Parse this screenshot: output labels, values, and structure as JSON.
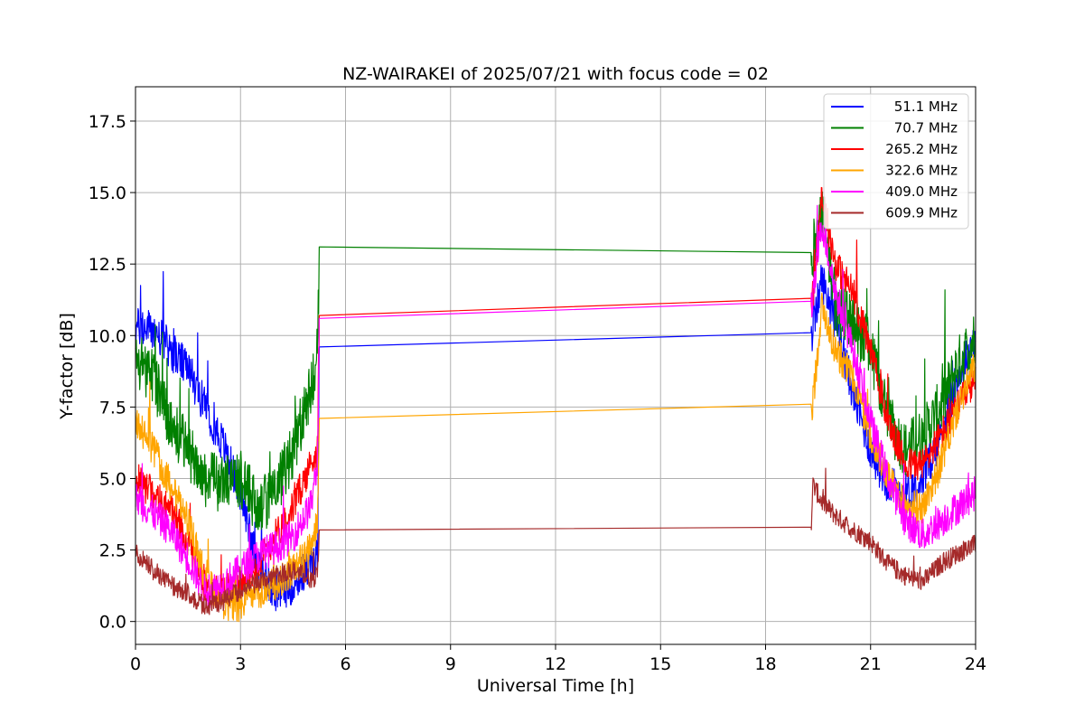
{
  "chart_data": {
    "type": "line",
    "title": "NZ-WAIRAKEI of 2025/07/21 with focus code = 02",
    "xlabel": "Universal Time [h]",
    "ylabel": "Y-factor [dB]",
    "xlim": [
      0,
      24
    ],
    "ylim": [
      -0.8,
      18.7
    ],
    "xticks": [
      0,
      3,
      6,
      9,
      12,
      15,
      18,
      21,
      24
    ],
    "yticks": [
      0.0,
      2.5,
      5.0,
      7.5,
      10.0,
      12.5,
      15.0,
      17.5
    ],
    "xtick_labels": [
      "0",
      "3",
      "6",
      "9",
      "12",
      "15",
      "18",
      "21",
      "24"
    ],
    "ytick_labels": [
      "0.0",
      "2.5",
      "5.0",
      "7.5",
      "10.0",
      "12.5",
      "15.0",
      "17.5"
    ],
    "grid": true,
    "legend_position": "top-right",
    "series": [
      {
        "name": "51.1 MHz",
        "color": "#0000ff",
        "noise": 0.7,
        "x": [
          0,
          0.5,
          1,
          1.5,
          2,
          2.5,
          3,
          3.5,
          4,
          4.5,
          5,
          5.2,
          5.25,
          19.3,
          19.35,
          19.6,
          20,
          20.5,
          21,
          21.5,
          22,
          22.5,
          23,
          23.5,
          24
        ],
        "y": [
          10.3,
          10.2,
          9.5,
          8.8,
          7.5,
          6.2,
          4.5,
          2.0,
          1.0,
          1.3,
          2.0,
          2.2,
          9.6,
          10.1,
          10.1,
          12.0,
          10.5,
          8.0,
          6.0,
          4.8,
          4.5,
          5.0,
          6.5,
          8.5,
          10.0
        ]
      },
      {
        "name": "70.7 MHz",
        "color": "#008000",
        "noise": 1.0,
        "x": [
          0,
          0.5,
          1,
          1.5,
          2,
          2.5,
          3,
          3.5,
          4,
          4.5,
          5,
          5.2,
          5.25,
          19.3,
          19.35,
          19.6,
          20,
          20.5,
          21,
          21.5,
          22,
          22.5,
          23,
          23.5,
          24
        ],
        "y": [
          9.0,
          8.5,
          7.0,
          6.0,
          5.0,
          4.8,
          5.0,
          4.0,
          4.5,
          6.0,
          8.0,
          9.0,
          13.1,
          12.9,
          12.9,
          14.5,
          11.0,
          10.5,
          9.5,
          7.0,
          6.0,
          6.5,
          7.5,
          9.0,
          10.0
        ]
      },
      {
        "name": "265.2 MHz",
        "color": "#ff0000",
        "noise": 0.6,
        "x": [
          0,
          0.5,
          1,
          1.5,
          2,
          2.5,
          3,
          3.5,
          4,
          4.5,
          5,
          5.2,
          5.25,
          19.3,
          19.35,
          19.6,
          20,
          20.5,
          21,
          21.5,
          22,
          22.5,
          23,
          23.5,
          24
        ],
        "y": [
          5.0,
          4.5,
          4.0,
          2.8,
          1.3,
          1.0,
          1.3,
          2.0,
          3.0,
          4.0,
          5.5,
          6.0,
          10.7,
          11.3,
          11.3,
          15.0,
          12.5,
          11.5,
          9.5,
          7.0,
          5.5,
          5.5,
          6.5,
          7.5,
          8.5
        ]
      },
      {
        "name": "322.6 MHz",
        "color": "#ffa500",
        "noise": 0.6,
        "x": [
          0,
          0.5,
          1,
          1.5,
          2,
          2.5,
          3,
          3.5,
          4,
          4.5,
          5,
          5.2,
          5.25,
          19.3,
          19.35,
          19.6,
          20,
          20.5,
          21,
          21.5,
          22,
          22.5,
          23,
          23.5,
          24
        ],
        "y": [
          7.0,
          6.0,
          4.8,
          3.5,
          1.5,
          0.5,
          0.6,
          1.0,
          1.3,
          1.8,
          2.5,
          3.5,
          7.1,
          7.6,
          7.6,
          11.0,
          9.5,
          8.5,
          6.5,
          5.0,
          4.0,
          4.0,
          5.5,
          7.5,
          9.0
        ]
      },
      {
        "name": "409.0 MHz",
        "color": "#ff00ff",
        "noise": 0.6,
        "x": [
          0,
          0.5,
          1,
          1.5,
          2,
          2.5,
          3,
          3.5,
          4,
          4.5,
          5,
          5.2,
          5.25,
          19.3,
          19.35,
          19.6,
          20,
          20.5,
          21,
          21.5,
          22,
          22.5,
          23,
          23.5,
          24
        ],
        "y": [
          4.3,
          3.8,
          3.2,
          2.2,
          1.0,
          1.3,
          1.8,
          2.3,
          2.6,
          3.0,
          4.0,
          5.5,
          10.6,
          11.2,
          11.2,
          14.0,
          11.5,
          9.5,
          7.0,
          5.0,
          3.5,
          3.0,
          3.5,
          4.0,
          4.5
        ]
      },
      {
        "name": "609.9 MHz",
        "color": "#a52a2a",
        "noise": 0.35,
        "x": [
          0,
          0.5,
          1,
          1.5,
          2,
          2.5,
          3,
          3.5,
          4,
          4.5,
          5,
          5.2,
          5.25,
          19.3,
          19.35,
          19.6,
          20,
          20.5,
          21,
          21.5,
          22,
          22.5,
          23,
          23.5,
          24
        ],
        "y": [
          2.4,
          1.8,
          1.3,
          1.0,
          0.5,
          0.7,
          1.1,
          1.4,
          1.6,
          1.8,
          1.5,
          1.6,
          3.2,
          3.3,
          4.8,
          4.2,
          3.7,
          3.2,
          2.8,
          2.0,
          1.6,
          1.4,
          2.0,
          2.4,
          2.7
        ]
      }
    ]
  }
}
